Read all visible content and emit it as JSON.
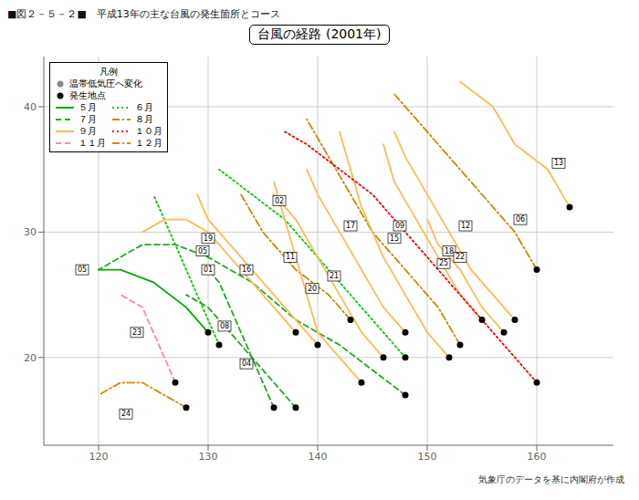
{
  "chart_data": {
    "type": "line",
    "title": "台風の経路 (2001年)",
    "subtitle": "■図２－５－２■　平成13年の主な台風の発生箇所とコース",
    "caption": "気象庁のデータを基に内閣府が作成",
    "xlim": [
      115,
      167
    ],
    "ylim": [
      13,
      44
    ],
    "xticks": [
      120,
      130,
      140,
      150,
      160
    ],
    "yticks": [
      20,
      30,
      40
    ],
    "grid": true,
    "legend": "upper left",
    "legend_title": "凡例",
    "legend_entries": [
      {
        "label": "温帯低気圧へ変化",
        "marker": "circle",
        "color": "#888888"
      },
      {
        "label": "発生地点",
        "marker": "circle",
        "color": "#000000"
      },
      {
        "label": "５月",
        "color": "#00aa00",
        "line_style": "solid"
      },
      {
        "label": "６月",
        "color": "#00cc00",
        "line_style": "dotted"
      },
      {
        "label": "７月",
        "color": "#22aa22",
        "line_style": "dashed"
      },
      {
        "label": "８月",
        "color": "#cc8800",
        "line_style": "dashdot"
      },
      {
        "label": "９月",
        "color": "#ffbb55",
        "line_style": "solid"
      },
      {
        "label": "１０月",
        "color": "#ff0000",
        "line_style": "dotted"
      },
      {
        "label": "１１月",
        "color": "#ff88aa",
        "line_style": "dashed"
      },
      {
        "label": "１２月",
        "color": "#dd8800",
        "line_style": "dashdot"
      }
    ],
    "series": [
      {
        "label": "01",
        "color": "#00cc00",
        "line_style": "dotted",
        "x": [
          131,
          130,
          129,
          128,
          127,
          126,
          125
        ],
        "y": [
          21,
          23,
          25,
          27,
          29,
          31,
          33
        ],
        "start": {
          "x": 131,
          "y": 21,
          "color": "#000000"
        },
        "label_at": [
          130.0,
          27.0
        ]
      },
      {
        "label": "02",
        "color": "#00cc00",
        "line_style": "dotted",
        "x": [
          148,
          145,
          141,
          137,
          134,
          131
        ],
        "y": [
          20,
          23,
          27,
          31,
          33,
          35
        ],
        "start": {
          "x": 148,
          "y": 20,
          "color": "#000000"
        },
        "label_at": [
          136.5,
          32.5
        ]
      },
      {
        "label": "04",
        "color": "#22aa22",
        "line_style": "dashed",
        "x": [
          136,
          135,
          134,
          133,
          132,
          131,
          130
        ],
        "y": [
          16,
          18,
          20,
          22,
          24,
          26,
          27
        ],
        "start": {
          "x": 136,
          "y": 16,
          "color": "#000000"
        },
        "label_at": [
          133.5,
          19.5
        ]
      },
      {
        "label": "05",
        "color": "#22aa22",
        "line_style": "dashed",
        "x": [
          148,
          145,
          142,
          138,
          134,
          130,
          127,
          124,
          122,
          120
        ],
        "y": [
          17,
          19,
          21,
          23,
          26,
          28,
          29,
          29,
          28,
          27
        ],
        "start": {
          "x": 148,
          "y": 17,
          "color": "#000000"
        },
        "label_at": [
          129.5,
          28.5
        ]
      },
      {
        "label": "05",
        "color": "#00aa00",
        "line_style": "solid",
        "x": [
          130,
          128,
          125,
          122,
          120
        ],
        "y": [
          22,
          24,
          26,
          27,
          27
        ],
        "start": {
          "x": 130,
          "y": 22,
          "color": "#000000"
        },
        "label_at": [
          118.5,
          27.0
        ]
      },
      {
        "label": "08",
        "color": "#22aa22",
        "line_style": "dashed",
        "x": [
          138,
          136,
          134,
          132,
          130,
          128
        ],
        "y": [
          16,
          18,
          20,
          22,
          24,
          25
        ],
        "start": {
          "x": 138,
          "y": 16,
          "color": "#000000"
        },
        "label_at": [
          131.5,
          22.5
        ]
      },
      {
        "label": "09",
        "color": "#cc8800",
        "line_style": "dashdot",
        "x": [
          153,
          151,
          148,
          145,
          143,
          141,
          139
        ],
        "y": [
          21,
          24,
          27,
          30,
          33,
          36,
          39
        ],
        "start": {
          "x": 153,
          "y": 21,
          "color": "#000000"
        },
        "label_at": [
          147.5,
          30.5
        ]
      },
      {
        "label": "06",
        "color": "#cc8800",
        "line_style": "dashdot",
        "x": [
          160,
          158,
          155,
          152,
          149,
          147
        ],
        "y": [
          27,
          30,
          33,
          36,
          39,
          41
        ],
        "start": {
          "x": 160,
          "y": 27,
          "color": "#000000"
        },
        "label_at": [
          158.5,
          31.0
        ]
      },
      {
        "label": "11",
        "color": "#cc8800",
        "line_style": "dashdot",
        "x": [
          143,
          141,
          138,
          135,
          133
        ],
        "y": [
          23,
          25,
          27,
          30,
          33
        ],
        "start": {
          "x": 143,
          "y": 23,
          "color": "#000000"
        },
        "label_at": [
          137.5,
          28.0
        ]
      },
      {
        "label": "12",
        "color": "#ffbb55",
        "line_style": "solid",
        "x": [
          158,
          156,
          154,
          152,
          150,
          148,
          147
        ],
        "y": [
          23,
          25,
          27,
          30,
          33,
          36,
          38
        ],
        "start": {
          "x": 158,
          "y": 23,
          "color": "#000000"
        },
        "label_at": [
          153.5,
          30.5
        ]
      },
      {
        "label": "13",
        "color": "#ffbb55",
        "line_style": "solid",
        "x": [
          163,
          161,
          158,
          156,
          153
        ],
        "y": [
          32,
          35,
          37,
          40,
          42
        ],
        "start": {
          "x": 163,
          "y": 32,
          "color": "#000000"
        },
        "label_at": [
          162.0,
          35.5
        ]
      },
      {
        "label": "15",
        "color": "#ffbb55",
        "line_style": "solid",
        "x": [
          152,
          150,
          148,
          146,
          144,
          143,
          142
        ],
        "y": [
          20,
          22,
          25,
          28,
          32,
          35,
          38
        ],
        "start": {
          "x": 152,
          "y": 20,
          "color": "#000000"
        },
        "label_at": [
          147.0,
          29.5
        ]
      },
      {
        "label": "16",
        "color": "#ffbb55",
        "line_style": "solid",
        "x": [
          140,
          138,
          136,
          134,
          132,
          130,
          129
        ],
        "y": [
          21,
          23,
          25,
          27,
          29,
          31,
          33
        ],
        "start": {
          "x": 140,
          "y": 21,
          "color": "#000000"
        },
        "label_at": [
          133.5,
          27.0
        ]
      },
      {
        "label": "17",
        "color": "#ffbb55",
        "line_style": "solid",
        "x": [
          148,
          146,
          144,
          142,
          140,
          139
        ],
        "y": [
          22,
          24,
          27,
          30,
          33,
          35
        ],
        "start": {
          "x": 148,
          "y": 22,
          "color": "#000000"
        },
        "label_at": [
          143.0,
          30.5
        ]
      },
      {
        "label": "18",
        "color": "#ffbb55",
        "line_style": "solid",
        "x": [
          155,
          153,
          151,
          149,
          147,
          146
        ],
        "y": [
          23,
          25,
          28,
          31,
          34,
          37
        ],
        "start": {
          "x": 155,
          "y": 23,
          "color": "#000000"
        },
        "label_at": [
          152.0,
          28.5
        ]
      },
      {
        "label": "19",
        "color": "#ffbb55",
        "line_style": "solid",
        "x": [
          138,
          136,
          134,
          132,
          130,
          128,
          126,
          124
        ],
        "y": [
          22,
          24,
          26,
          28,
          30,
          31,
          31,
          30
        ],
        "start": {
          "x": 138,
          "y": 22,
          "color": "#000000"
        },
        "label_at": [
          130.0,
          29.5
        ]
      },
      {
        "label": "20",
        "color": "#ffbb55",
        "line_style": "solid",
        "x": [
          144,
          142,
          140,
          139,
          138,
          137,
          136
        ],
        "y": [
          18,
          20,
          22,
          25,
          28,
          31,
          34
        ],
        "start": {
          "x": 144,
          "y": 18,
          "color": "#000000"
        },
        "label_at": [
          139.5,
          25.5
        ]
      },
      {
        "label": "21",
        "color": "#ffbb55",
        "line_style": "solid",
        "x": [
          146,
          144,
          142,
          140,
          138,
          136
        ],
        "y": [
          20,
          22,
          25,
          28,
          31,
          33
        ],
        "start": {
          "x": 146,
          "y": 20,
          "color": "#000000"
        },
        "label_at": [
          141.5,
          26.5
        ]
      },
      {
        "label": "22",
        "color": "#ffbb55",
        "line_style": "solid",
        "x": [
          157,
          155,
          153,
          151,
          150
        ],
        "y": [
          22,
          24,
          27,
          29,
          31
        ],
        "start": {
          "x": 157,
          "y": 22,
          "color": "#000000"
        },
        "label_at": [
          153.0,
          28.0
        ]
      },
      {
        "label": "25",
        "color": "#ff0000",
        "line_style": "dotted",
        "x": [
          160,
          157,
          154,
          151,
          148,
          145,
          142,
          139,
          137
        ],
        "y": [
          18,
          21,
          24,
          27,
          30,
          33,
          35,
          37,
          38
        ],
        "start": {
          "x": 160,
          "y": 18,
          "color": "#000000"
        },
        "label_at": [
          151.5,
          27.5
        ]
      },
      {
        "label": "23",
        "color": "#ff88aa",
        "line_style": "dashed",
        "x": [
          127,
          126,
          125,
          124,
          122
        ],
        "y": [
          18,
          20,
          22,
          24,
          25
        ],
        "start": {
          "x": 127,
          "y": 18,
          "color": "#000000"
        },
        "label_at": [
          123.5,
          22.0
        ]
      },
      {
        "label": "24",
        "color": "#dd8800",
        "line_style": "dashdot",
        "x": [
          128,
          126,
          124,
          122,
          120
        ],
        "y": [
          16,
          17,
          18,
          18,
          17
        ],
        "start": {
          "x": 128,
          "y": 16,
          "color": "#000000"
        },
        "label_at": [
          122.5,
          15.5
        ]
      }
    ]
  }
}
